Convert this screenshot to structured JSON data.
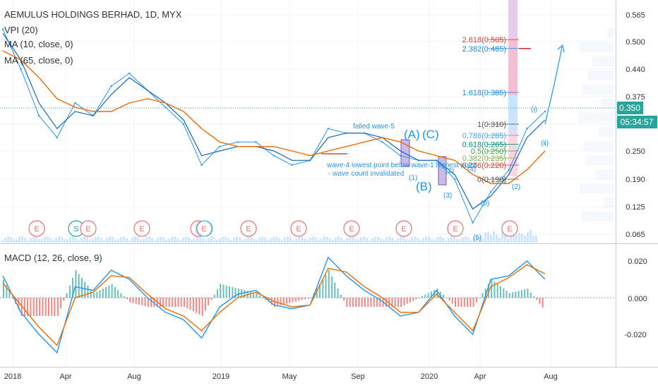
{
  "header": {
    "title": "AEMULUS HOLDINGS BERHAD, 1D, MYX",
    "indicators": [
      "VPI (20)",
      "MA (10, close, 0)",
      "MA (65, close, 0)"
    ]
  },
  "price_axis": {
    "ticks": [
      "0.565",
      "0.500",
      "0.440",
      "0.375",
      "0.310",
      "0.250",
      "0.190",
      "0.125",
      "0.065"
    ],
    "last_price": "0.350",
    "countdown": "05:34:57"
  },
  "macd": {
    "label": "MACD (12, 26, close, 9)",
    "ticks": [
      "0.020",
      "0.000",
      "-0.020"
    ]
  },
  "time_axis": {
    "ticks": [
      "2018",
      "Apr",
      "Aug",
      "2019",
      "May",
      "Sep",
      "2020",
      "Apr",
      "Aug"
    ]
  },
  "fib_levels": [
    {
      "label": "2.618(0.505)",
      "value": 0.505,
      "color": "#e53935"
    },
    {
      "label": "2.382(0.485)",
      "value": 0.485,
      "color": "#1e88e5"
    },
    {
      "label": "1.618(0.385)",
      "value": 0.385,
      "color": "#1e88e5"
    },
    {
      "label": "1(0.310)",
      "value": 0.31,
      "color": "#555555"
    },
    {
      "label": "0.786(0.285)",
      "value": 0.285,
      "color": "#42a5f5"
    },
    {
      "label": "0.618(0.265)",
      "value": 0.265,
      "color": "#00897b"
    },
    {
      "label": "0.5(0.250)",
      "value": 0.25,
      "color": "#43a047"
    },
    {
      "label": "0.382(0.235)",
      "value": 0.235,
      "color": "#7cb342"
    },
    {
      "label": "0.236(0.220)",
      "value": 0.22,
      "color": "#e53935"
    },
    {
      "label": "0(0.190)",
      "value": 0.19,
      "color": "#555555"
    }
  ],
  "annotations": {
    "failed_wave": "failed wave-5",
    "wave_A": "(A)",
    "wave_C": "(C)",
    "wave_B": "(B)",
    "invalid_line1": "wave-4 lowest point below wave-1 highest point",
    "invalid_line2": "- wave count invalidated",
    "w1": "(1)",
    "w2": "(2)",
    "w3": "(3)",
    "w4": "(4)",
    "w5": "(5)",
    "w0": "(0)",
    "wi": "(i)",
    "wii": "(ii)"
  },
  "event_markers": [
    "E",
    "S",
    "E",
    "E",
    "E",
    "E",
    "E",
    "E",
    "E",
    "E",
    "E",
    "E"
  ],
  "colors": {
    "price_line": "#2196f3",
    "ma10": "#1565c0",
    "ma65": "#ef6c00",
    "macd_line": "#2196f3",
    "signal_line": "#ef6c00",
    "hist_up": "#26a69a",
    "hist_down": "#ef5350",
    "last_price_badge": "#26a69a"
  },
  "chart_data": [
    {
      "type": "line",
      "title": "AEMULUS HOLDINGS BERHAD, 1D, MYX",
      "x": [
        "2018-01",
        "2018-02",
        "2018-03",
        "2018-04",
        "2018-05",
        "2018-06",
        "2018-07",
        "2018-08",
        "2018-09",
        "2018-10",
        "2018-11",
        "2018-12",
        "2019-01",
        "2019-02",
        "2019-03",
        "2019-04",
        "2019-05",
        "2019-06",
        "2019-07",
        "2019-08",
        "2019-09",
        "2019-10",
        "2019-11",
        "2019-12",
        "2020-01",
        "2020-02",
        "2020-03",
        "2020-04",
        "2020-05",
        "2020-06",
        "2020-07"
      ],
      "series": [
        {
          "name": "Price",
          "values": [
            0.53,
            0.44,
            0.33,
            0.28,
            0.36,
            0.33,
            0.4,
            0.43,
            0.39,
            0.35,
            0.31,
            0.22,
            0.26,
            0.27,
            0.27,
            0.24,
            0.22,
            0.23,
            0.3,
            0.29,
            0.29,
            0.27,
            0.24,
            0.23,
            0.23,
            0.19,
            0.09,
            0.16,
            0.21,
            0.3,
            0.34
          ]
        },
        {
          "name": "MA (10, close, 0)",
          "values": [
            0.52,
            0.46,
            0.36,
            0.3,
            0.34,
            0.33,
            0.38,
            0.42,
            0.39,
            0.36,
            0.32,
            0.24,
            0.25,
            0.26,
            0.26,
            0.25,
            0.23,
            0.23,
            0.28,
            0.29,
            0.29,
            0.28,
            0.25,
            0.23,
            0.23,
            0.2,
            0.12,
            0.15,
            0.2,
            0.28,
            0.32
          ]
        },
        {
          "name": "MA (65, close, 0)",
          "values": [
            0.48,
            0.46,
            0.42,
            0.37,
            0.35,
            0.34,
            0.34,
            0.36,
            0.37,
            0.36,
            0.34,
            0.3,
            0.27,
            0.26,
            0.26,
            0.26,
            0.25,
            0.24,
            0.25,
            0.26,
            0.27,
            0.28,
            0.27,
            0.25,
            0.24,
            0.23,
            0.2,
            0.18,
            0.18,
            0.21,
            0.25
          ]
        }
      ],
      "ylim": [
        0.05,
        0.59
      ],
      "yticks": [
        "0.565",
        "0.500",
        "0.440",
        "0.375",
        "0.310",
        "0.250",
        "0.190",
        "0.125",
        "0.065"
      ],
      "xticks": [
        "2018",
        "Apr",
        "Aug",
        "2019",
        "May",
        "Sep",
        "2020",
        "Apr",
        "Aug"
      ]
    },
    {
      "type": "line",
      "title": "MACD (12, 26, close, 9)",
      "x": [
        "2018-01",
        "2018-02",
        "2018-03",
        "2018-04",
        "2018-05",
        "2018-06",
        "2018-07",
        "2018-08",
        "2018-09",
        "2018-10",
        "2018-11",
        "2018-12",
        "2019-01",
        "2019-02",
        "2019-03",
        "2019-04",
        "2019-05",
        "2019-06",
        "2019-07",
        "2019-08",
        "2019-09",
        "2019-10",
        "2019-11",
        "2019-12",
        "2020-01",
        "2020-02",
        "2020-03",
        "2020-04",
        "2020-05",
        "2020-06",
        "2020-07"
      ],
      "series": [
        {
          "name": "MACD",
          "values": [
            0.012,
            -0.008,
            -0.02,
            -0.03,
            0.006,
            0.004,
            0.015,
            0.01,
            0.0,
            -0.008,
            -0.012,
            -0.022,
            -0.005,
            0.002,
            0.004,
            -0.004,
            -0.006,
            -0.004,
            0.022,
            0.012,
            0.004,
            -0.002,
            -0.01,
            -0.008,
            0.004,
            -0.01,
            -0.02,
            0.01,
            0.012,
            0.02,
            0.01
          ]
        },
        {
          "name": "Signal",
          "values": [
            0.008,
            -0.004,
            -0.016,
            -0.026,
            0.0,
            0.003,
            0.012,
            0.011,
            0.002,
            -0.006,
            -0.01,
            -0.018,
            -0.008,
            0.0,
            0.003,
            -0.002,
            -0.005,
            -0.004,
            0.016,
            0.014,
            0.006,
            0.0,
            -0.008,
            -0.008,
            0.002,
            -0.008,
            -0.018,
            0.006,
            0.011,
            0.018,
            0.013
          ]
        }
      ],
      "ylim": [
        -0.03,
        0.03
      ],
      "yticks": [
        "0.020",
        "0.000",
        "-0.020"
      ]
    }
  ]
}
